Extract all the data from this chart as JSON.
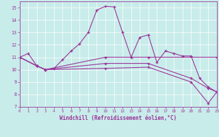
{
  "xlabel": "Windchill (Refroidissement éolien,°C)",
  "background_color": "#c8ecea",
  "grid_color": "#ffffff",
  "line_color": "#993399",
  "series1_x": [
    0,
    1,
    2,
    3,
    4,
    5,
    6,
    7,
    8,
    9,
    10,
    11,
    12,
    13,
    14,
    15,
    16,
    17,
    18,
    19,
    20,
    21,
    22,
    23
  ],
  "series1_y": [
    11.0,
    11.3,
    10.3,
    10.0,
    10.1,
    10.8,
    11.5,
    12.1,
    13.0,
    14.8,
    15.1,
    15.05,
    13.0,
    11.0,
    12.6,
    12.8,
    10.6,
    11.5,
    11.3,
    11.1,
    11.1,
    9.3,
    8.6,
    8.2
  ],
  "series2_x": [
    0,
    2,
    3,
    10,
    15,
    23
  ],
  "series2_y": [
    11.0,
    10.3,
    10.0,
    11.0,
    11.0,
    11.0
  ],
  "series3_x": [
    0,
    2,
    3,
    10,
    15,
    20,
    22,
    23
  ],
  "series3_y": [
    11.0,
    10.3,
    10.0,
    10.5,
    10.5,
    9.3,
    8.5,
    8.2
  ],
  "series4_x": [
    0,
    2,
    3,
    10,
    15,
    20,
    22,
    23
  ],
  "series4_y": [
    11.0,
    10.3,
    10.0,
    10.1,
    10.2,
    9.0,
    7.3,
    8.2
  ],
  "ylim": [
    7,
    15.5
  ],
  "xlim": [
    0,
    23
  ],
  "yticks": [
    7,
    8,
    9,
    10,
    11,
    12,
    13,
    14,
    15
  ],
  "xticks": [
    0,
    1,
    2,
    3,
    4,
    5,
    6,
    7,
    8,
    9,
    10,
    11,
    12,
    13,
    14,
    15,
    16,
    17,
    18,
    19,
    20,
    21,
    22,
    23
  ]
}
